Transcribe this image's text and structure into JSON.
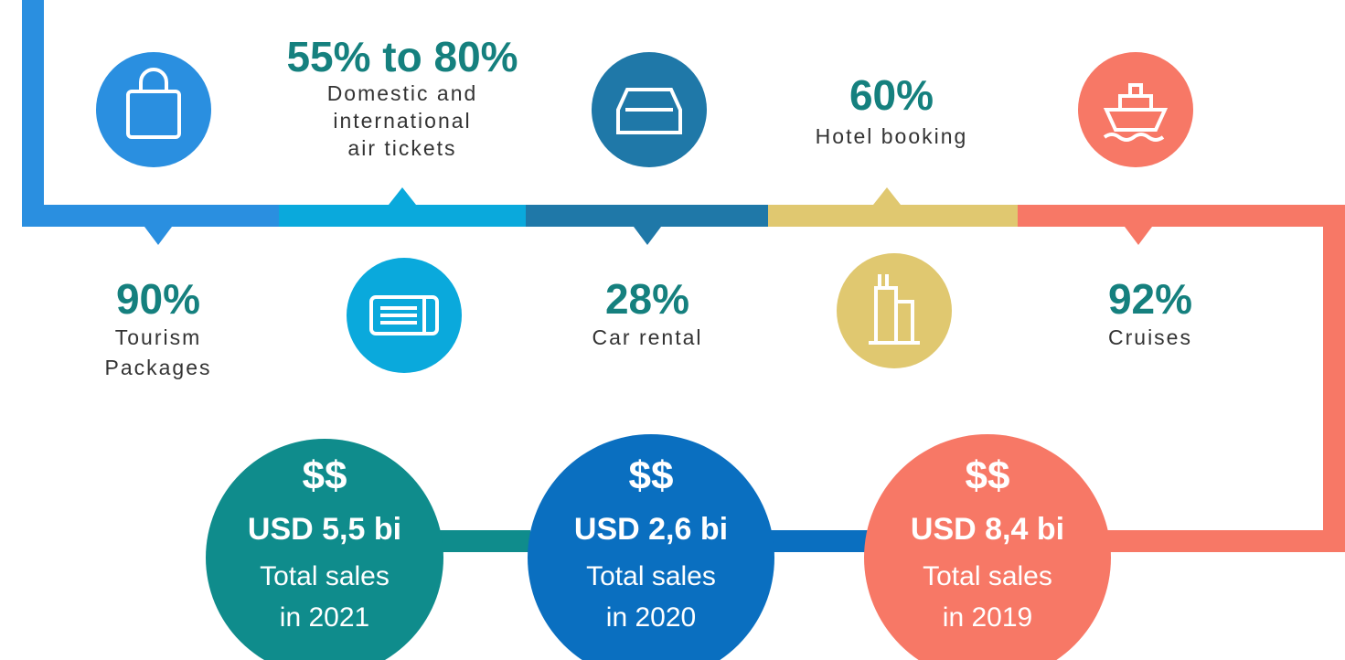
{
  "top_items": [
    {
      "value": "55% to 80%",
      "lines": [
        "Domestic and",
        "international",
        "air tickets"
      ]
    },
    {
      "value": "60%",
      "lines": [
        "Hotel booking"
      ]
    }
  ],
  "bottom_items": [
    {
      "value": "90%",
      "lines": [
        "Tourism",
        "Packages"
      ]
    },
    {
      "value": "28%",
      "lines": [
        "Car rental"
      ]
    },
    {
      "value": "92%",
      "lines": [
        "Cruises"
      ]
    }
  ],
  "sales": [
    {
      "symbol": "$$",
      "amount": "USD 5,5 bi",
      "lines": [
        "Total sales",
        "in 2021"
      ]
    },
    {
      "symbol": "$$",
      "amount": "USD 2,6 bi",
      "lines": [
        "Total sales",
        "in 2020"
      ]
    },
    {
      "symbol": "$$",
      "amount": "USD 8,4 bi",
      "lines": [
        "Total sales",
        "in 2019"
      ]
    }
  ]
}
